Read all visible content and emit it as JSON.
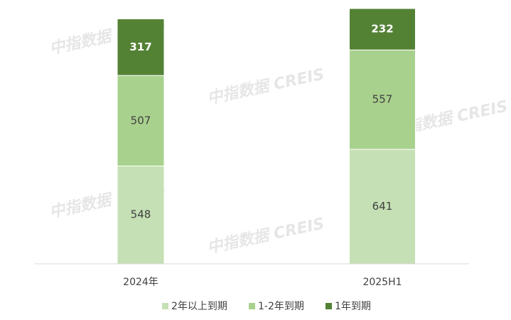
{
  "chart_data": {
    "type": "bar",
    "stacked": true,
    "watermark": "中指数据 CREIS",
    "categories": [
      "2024年",
      "2025H1"
    ],
    "series": [
      {
        "name": "2年以上到期",
        "color": "#c5e0b4",
        "values": [
          548,
          641
        ]
      },
      {
        "name": "1-2年到期",
        "color": "#a9d18e",
        "values": [
          507,
          557
        ]
      },
      {
        "name": "1年到期",
        "color": "#548235",
        "values": [
          317,
          232
        ]
      }
    ],
    "legend": "bottom"
  }
}
